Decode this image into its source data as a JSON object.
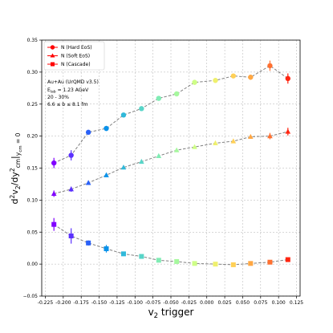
{
  "chart_data": {
    "type": "scatter",
    "xlabel_main": "v",
    "xlabel_sub": "2",
    "xlabel_tail": " trigger",
    "ylabel_pre": "d",
    "ylabel_sup1": "2",
    "ylabel_mid1": "v",
    "ylabel_sub1": "2",
    "ylabel_mid2": "/dy",
    "ylabel_sup2": "2",
    "ylabel_sub2": "cm",
    "ylabel_mid3": "|",
    "ylabel_sub3": "y",
    "ylabel_subsub3": "cm",
    "ylabel_sub3_tail": " = 0",
    "xlim": [
      -0.23,
      0.13
    ],
    "ylim": [
      -0.05,
      0.35
    ],
    "xticks": [
      "-0.225",
      "-0.200",
      "-0.175",
      "-0.150",
      "-0.125",
      "-0.100",
      "-0.075",
      "-0.050",
      "-0.025",
      "0.000",
      "0.025",
      "0.050",
      "0.075",
      "0.100",
      "0.125"
    ],
    "xtick_values": [
      -0.225,
      -0.2,
      -0.175,
      -0.15,
      -0.125,
      -0.1,
      -0.075,
      -0.05,
      -0.025,
      0.0,
      0.025,
      0.05,
      0.075,
      0.1,
      0.125
    ],
    "yticks": [
      "−0.05",
      "0.00",
      "0.05",
      "0.10",
      "0.15",
      "0.20",
      "0.25",
      "0.30",
      "0.35"
    ],
    "ytick_values": [
      -0.05,
      0.0,
      0.05,
      0.1,
      0.15,
      0.2,
      0.25,
      0.3,
      0.35
    ],
    "grid": true,
    "legend_position": "top-left",
    "x": [
      -0.213,
      -0.189,
      -0.165,
      -0.14,
      -0.116,
      -0.091,
      -0.067,
      -0.042,
      -0.017,
      0.012,
      0.037,
      0.061,
      0.088,
      0.113
    ],
    "point_colors": [
      "#8000ff",
      "#5a30fe",
      "#2a61f8",
      "#0a92ea",
      "#30b9da",
      "#58d5c8",
      "#80ecb4",
      "#a6f89e",
      "#cefe86",
      "#eff06e",
      "#ffd057",
      "#ffa743",
      "#ff7030",
      "#ff2510"
    ],
    "series": [
      {
        "name": "N (Hard EoS)",
        "marker": "circle",
        "values": [
          0.158,
          0.17,
          0.206,
          0.212,
          0.233,
          0.243,
          0.259,
          0.266,
          0.284,
          0.287,
          0.294,
          0.292,
          0.31,
          0.29
        ],
        "errors": [
          0.008,
          0.008,
          0.003,
          0.004,
          0.003,
          0.003,
          0.003,
          0.003,
          0.003,
          0.003,
          0.003,
          0.004,
          0.008,
          0.008
        ]
      },
      {
        "name": "N (Soft EoS)",
        "marker": "triangle",
        "values": [
          0.11,
          0.117,
          0.127,
          0.139,
          0.151,
          0.16,
          0.169,
          0.178,
          0.183,
          0.189,
          0.192,
          0.199,
          0.2,
          0.207
        ],
        "errors": [
          0.005,
          0.004,
          0.003,
          0.003,
          0.003,
          0.003,
          0.003,
          0.003,
          0.003,
          0.003,
          0.003,
          0.003,
          0.005,
          0.006
        ]
      },
      {
        "name": "N (Cascade)",
        "marker": "square",
        "values": [
          0.062,
          0.044,
          0.033,
          0.024,
          0.016,
          0.012,
          0.006,
          0.004,
          0.001,
          0.0,
          -0.001,
          0.001,
          0.003,
          0.007
        ],
        "errors": [
          0.01,
          0.012,
          0.004,
          0.006,
          0.003,
          0.003,
          0.003,
          0.002,
          0.002,
          0.002,
          0.002,
          0.002,
          0.002,
          0.002
        ]
      }
    ],
    "legend_marker_color": "#ff0000",
    "annotation": [
      "Au+Au (UrQMD v3.5)",
      "E",
      "lab",
      " = 1.23 AGeV",
      "20 - 30%",
      "6.6 ≤ b ≤ 8.1 fm"
    ]
  }
}
